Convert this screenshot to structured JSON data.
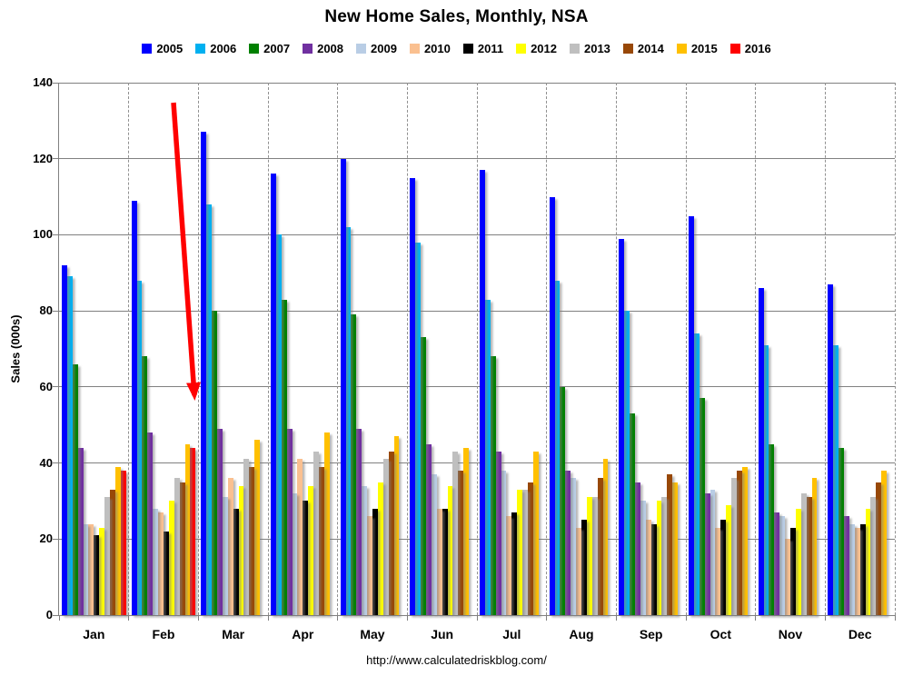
{
  "title": "New Home Sales, Monthly, NSA",
  "footer_url": "http://www.calculatedriskblog.com/",
  "chart_data": {
    "type": "bar",
    "title": "New Home Sales, Monthly, NSA",
    "xlabel": "",
    "ylabel": "Sales (000s)",
    "ylim": [
      0,
      140
    ],
    "yticks": [
      140,
      120,
      100,
      80,
      60,
      40,
      20,
      0
    ],
    "grid": "horizontal solid, vertical dashed category separators",
    "legend_position": "top",
    "grid_color": "#808080",
    "categories": [
      "Jan",
      "Feb",
      "Mar",
      "Apr",
      "May",
      "Jun",
      "Jul",
      "Aug",
      "Sep",
      "Oct",
      "Nov",
      "Dec"
    ],
    "series": [
      {
        "name": "2005",
        "color": "#0000FF",
        "values": [
          92,
          109,
          127,
          116,
          120,
          115,
          117,
          110,
          99,
          105,
          86,
          87
        ]
      },
      {
        "name": "2006",
        "color": "#00B0F0",
        "values": [
          89,
          88,
          108,
          100,
          102,
          98,
          83,
          88,
          80,
          74,
          71,
          71
        ]
      },
      {
        "name": "2007",
        "color": "#008000",
        "values": [
          66,
          68,
          80,
          83,
          79,
          73,
          68,
          60,
          53,
          57,
          45,
          44
        ]
      },
      {
        "name": "2008",
        "color": "#7030A0",
        "values": [
          44,
          48,
          49,
          49,
          49,
          45,
          43,
          38,
          35,
          32,
          27,
          26
        ]
      },
      {
        "name": "2009",
        "color": "#B9CDE5",
        "values": [
          24,
          28,
          31,
          32,
          34,
          37,
          38,
          36,
          30,
          33,
          26,
          24
        ]
      },
      {
        "name": "2010",
        "color": "#FAC090",
        "values": [
          24,
          27,
          36,
          41,
          26,
          28,
          26,
          23,
          25,
          23,
          20,
          23
        ]
      },
      {
        "name": "2011",
        "color": "#000000",
        "values": [
          21,
          22,
          28,
          30,
          28,
          28,
          27,
          25,
          24,
          25,
          23,
          24
        ]
      },
      {
        "name": "2012",
        "color": "#FFFF00",
        "values": [
          23,
          30,
          34,
          34,
          35,
          34,
          33,
          31,
          30,
          29,
          28,
          28
        ]
      },
      {
        "name": "2013",
        "color": "#BFBFBF",
        "values": [
          31,
          36,
          41,
          43,
          41,
          43,
          33,
          31,
          31,
          36,
          32,
          31
        ]
      },
      {
        "name": "2014",
        "color": "#984807",
        "values": [
          33,
          35,
          39,
          39,
          43,
          38,
          35,
          36,
          37,
          38,
          31,
          35
        ]
      },
      {
        "name": "2015",
        "color": "#FFC000",
        "values": [
          39,
          45,
          46,
          48,
          47,
          44,
          43,
          41,
          35,
          39,
          36,
          38
        ]
      },
      {
        "name": "2016",
        "color": "#FF0000",
        "values": [
          38,
          44,
          null,
          null,
          null,
          null,
          null,
          null,
          null,
          null,
          null,
          null
        ]
      }
    ],
    "annotation": {
      "type": "arrow",
      "color": "#FF0000",
      "points_to": "Feb 2016 bar"
    }
  }
}
